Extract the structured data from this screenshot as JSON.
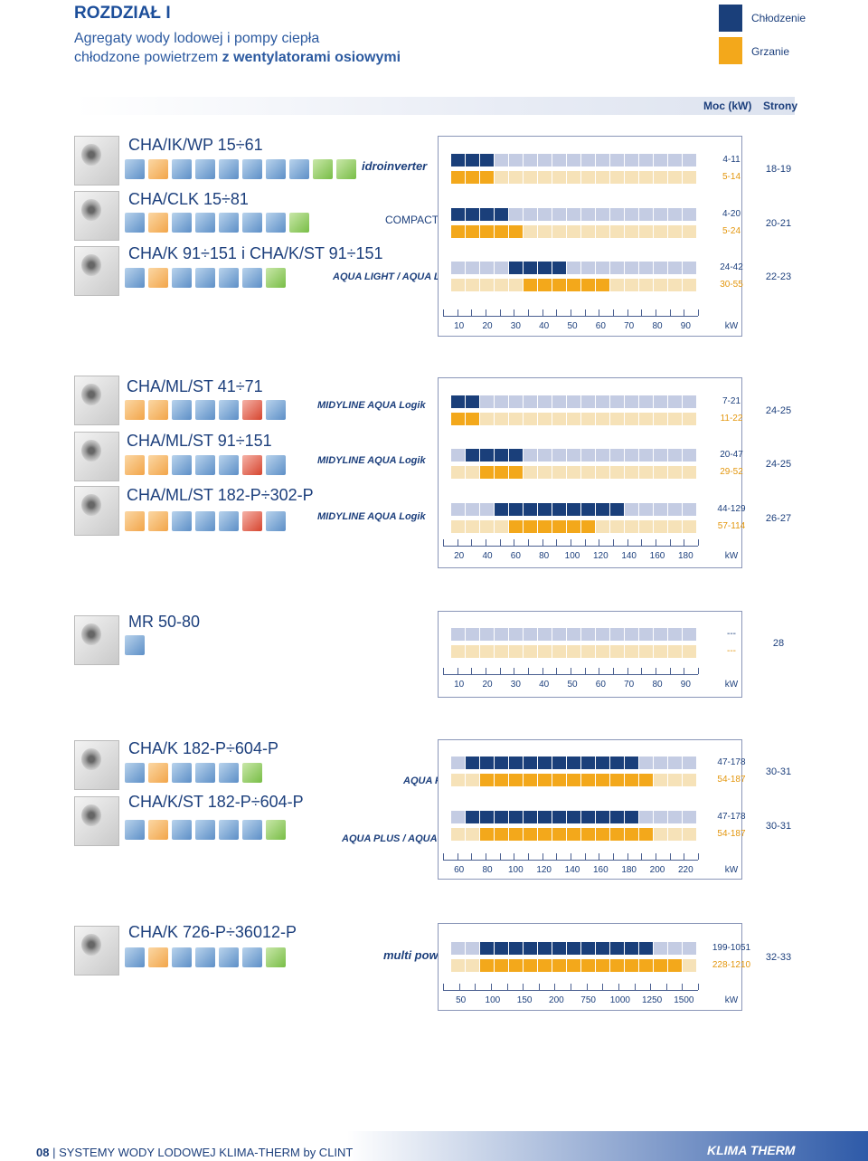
{
  "header": {
    "section": "ROZDZIAŁ I",
    "subtitle_line1": "Agregaty wody lodowej i pompy ciepła",
    "subtitle_line2_a": "chłodzone powietrzem ",
    "subtitle_line2_b": "z wentylatorami osiowymi",
    "legend_cooling": "Chłodzenie",
    "legend_heating": "Grzanie",
    "col_power": "Moc (kW)",
    "col_pages": "Strony",
    "color_cooling": "#1a3f7a",
    "color_heating": "#f3a81b"
  },
  "groups": [
    {
      "axis": [
        "10",
        "20",
        "30",
        "40",
        "50",
        "60",
        "70",
        "80",
        "90"
      ],
      "unit": "kW",
      "rows": [
        {
          "name": "CHA/IK/WP 15÷61",
          "brand": "idroinverter",
          "cool": "4-11",
          "heat": "5-14",
          "pages": "18-19"
        },
        {
          "name": "CHA/CLK 15÷81",
          "brand": "COMPACT Line",
          "cool": "4-20",
          "heat": "5-24",
          "pages": "20-21"
        },
        {
          "name": "CHA/K 91÷151 i CHA/K/ST 91÷151",
          "brand": "AQUA LIGHT / AQUA Logik",
          "cool": "24-42",
          "heat": "30-55",
          "pages": "22-23"
        }
      ]
    },
    {
      "axis": [
        "20",
        "40",
        "60",
        "80",
        "100",
        "120",
        "140",
        "160",
        "180"
      ],
      "unit": "kW",
      "rows": [
        {
          "name": "CHA/ML/ST 41÷71",
          "brand": "MIDYLINE AQUA Logik",
          "cool": "7-21",
          "heat": "11-22",
          "pages": "24-25"
        },
        {
          "name": "CHA/ML/ST 91÷151",
          "brand": "MIDYLINE AQUA Logik",
          "cool": "20-47",
          "heat": "29-52",
          "pages": "24-25"
        },
        {
          "name": "CHA/ML/ST 182-P÷302-P",
          "brand": "MIDYLINE AQUA Logik",
          "cool": "44-129",
          "heat": "57-114",
          "pages": "26-27"
        }
      ]
    },
    {
      "axis": [
        "10",
        "20",
        "30",
        "40",
        "50",
        "60",
        "70",
        "80",
        "90"
      ],
      "unit": "kW",
      "rows": [
        {
          "name": "MR 50-80",
          "brand": "",
          "cool": "---",
          "heat": "---",
          "pages": "28"
        }
      ]
    },
    {
      "axis": [
        "60",
        "80",
        "100",
        "120",
        "140",
        "160",
        "180",
        "200",
        "220"
      ],
      "unit": "kW",
      "rows": [
        {
          "name": "CHA/K 182-P÷604-P",
          "brand": "AQUA PLUS",
          "cool": "47-178",
          "heat": "54-187",
          "pages": "30-31"
        },
        {
          "name": "CHA/K/ST 182-P÷604-P",
          "brand": "AQUA PLUS / AQUA Logik",
          "cool": "47-178",
          "heat": "54-187",
          "pages": "30-31"
        }
      ]
    },
    {
      "axis": [
        "50",
        "100",
        "150",
        "200",
        "750",
        "1000",
        "1250",
        "1500"
      ],
      "unit": "kW",
      "rows": [
        {
          "name": "CHA/K 726-P÷36012-P",
          "brand": "multi power",
          "cool": "199-1051",
          "heat": "228-1210",
          "pages": "32-33"
        }
      ]
    }
  ],
  "footer": {
    "page_no": "08",
    "text": "SYSTEMY WODY LODOWEJ KLIMA-THERM by CLINT",
    "logo": "KLIMA THERM"
  }
}
